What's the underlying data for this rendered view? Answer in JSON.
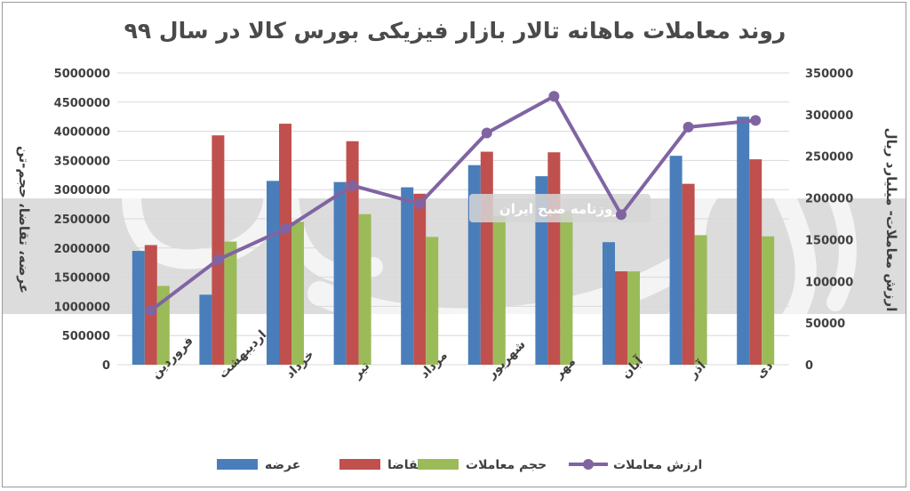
{
  "chart_data": {
    "type": "bar",
    "title": "روند معاملات ماهانه تالار بازار فیزیکی بورس کالا در سال ۹۹",
    "categories": [
      "فروردین",
      "اردیبهشت",
      "خرداد",
      "تیر",
      "مرداد",
      "شهریور",
      "مهر",
      "آبان",
      "آذر",
      "دی"
    ],
    "series": [
      {
        "name": "عرضه",
        "axis": "left",
        "color": "#4a7ebb",
        "values": [
          1950000,
          1200000,
          3150000,
          3130000,
          3040000,
          3420000,
          3230000,
          2100000,
          3580000,
          4250000
        ]
      },
      {
        "name": "تقاضا",
        "axis": "left",
        "color": "#c0504d",
        "values": [
          2050000,
          3930000,
          4130000,
          3830000,
          2930000,
          3650000,
          3640000,
          1600000,
          3100000,
          3520000
        ]
      },
      {
        "name": "حجم معاملات",
        "axis": "left",
        "color": "#9bbb59",
        "values": [
          1350000,
          2110000,
          2450000,
          2580000,
          2190000,
          2550000,
          2630000,
          1600000,
          2220000,
          2200000
        ]
      },
      {
        "name": "ارزش معاملات",
        "axis": "right",
        "type": "line",
        "color": "#8064a2",
        "values": [
          65000,
          126000,
          163000,
          215000,
          193000,
          278000,
          322000,
          180000,
          285000,
          293000
        ]
      }
    ],
    "yleft": {
      "label": "عرضه، تقاضا، حجم-تن",
      "range": [
        0,
        5000000
      ],
      "ticks": [
        "0",
        "500000",
        "1000000",
        "1500000",
        "2000000",
        "2500000",
        "3000000",
        "3500000",
        "4000000",
        "4500000",
        "5000000"
      ]
    },
    "yright": {
      "label": "ارزش معاملات- میلیارد ریال",
      "range": [
        0,
        350000
      ],
      "ticks": [
        "0",
        "50000",
        "100000",
        "150000",
        "200000",
        "250000",
        "300000",
        "350000"
      ]
    },
    "grid": true,
    "legend": "bottom",
    "colors": {
      "gridline": "#d9d9d9",
      "band": "#bfbfbf",
      "watermark": "#ffffff"
    },
    "watermark": {
      "text": "روزنامه صبح ایران"
    }
  }
}
